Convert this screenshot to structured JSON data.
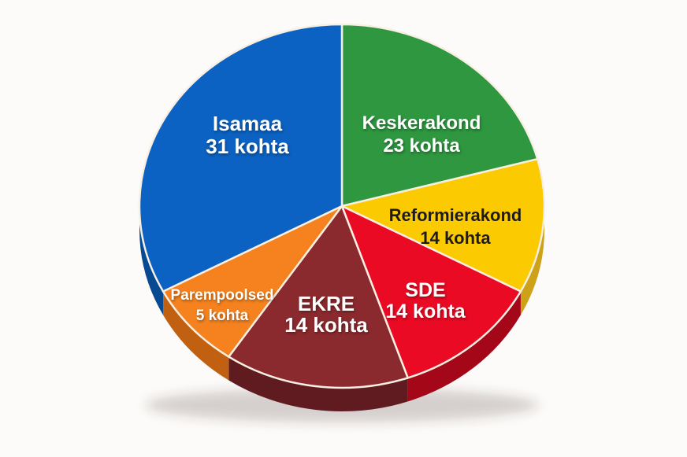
{
  "background_color": "#fcfbf9",
  "separator_color": "#f7efe2",
  "chart_data": {
    "type": "pie",
    "effect": "3d",
    "direction": "clockwise",
    "start_angle_deg": 0,
    "unit": "kohta",
    "legend_position": "inside-slices",
    "slices": [
      {
        "label": "Keskerakond",
        "value": 23,
        "value_label": "23 kohta",
        "color": "#2e9740",
        "side_color": "#1e6b2b",
        "text_color": "#ffffff",
        "display_angle_deg": 75
      },
      {
        "label": "Reformierakond",
        "value": 14,
        "value_label": "14 kohta",
        "color": "#fcca00",
        "side_color": "#cda218",
        "text_color": "#1d1c1a",
        "display_angle_deg": 43
      },
      {
        "label": "SDE",
        "value": 14,
        "value_label": "14 kohta",
        "color": "#ea0a24",
        "side_color": "#a40718",
        "text_color": "#ffffff",
        "display_angle_deg": 43
      },
      {
        "label": "EKRE",
        "value": 14,
        "value_label": "14 kohta",
        "color": "#8b2a2e",
        "side_color": "#5f1b20",
        "text_color": "#ffffff",
        "display_angle_deg": 53
      },
      {
        "label": "Parempoolsed",
        "value": 5,
        "value_label": "5 kohta",
        "color": "#f5821e",
        "side_color": "#c06010",
        "text_color": "#ffffff",
        "display_angle_deg": 28
      },
      {
        "label": "Isamaa",
        "value": 31,
        "value_label": "31 kohta",
        "color": "#0c62c2",
        "side_color": "#084a92",
        "text_color": "#ffffff",
        "display_angle_deg": 118
      }
    ]
  }
}
